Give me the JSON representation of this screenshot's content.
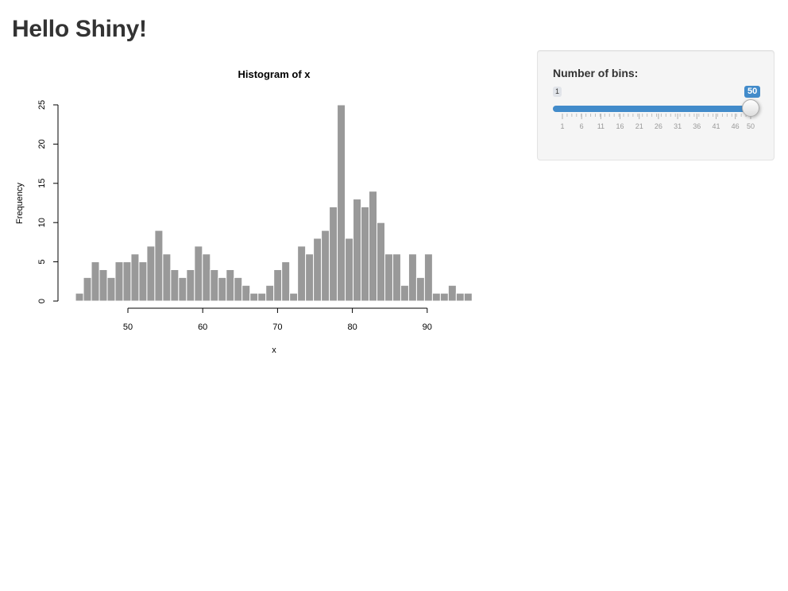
{
  "page": {
    "title": "Hello Shiny!"
  },
  "sidebar": {
    "slider": {
      "label": "Number of bins:",
      "min": 1,
      "max": 50,
      "value": 50,
      "min_label": "1",
      "value_label": "50",
      "tick_labels": [
        "1",
        "6",
        "11",
        "16",
        "21",
        "26",
        "31",
        "36",
        "41",
        "46",
        "50"
      ],
      "color": "#428bca"
    }
  },
  "chart_data": {
    "type": "bar",
    "title": "Histogram of x",
    "xlabel": "x",
    "ylabel": "Frequency",
    "bin_start": 43,
    "bin_width": 1.06,
    "values": [
      1,
      3,
      5,
      4,
      3,
      5,
      5,
      6,
      5,
      7,
      9,
      6,
      4,
      3,
      4,
      7,
      6,
      4,
      3,
      4,
      3,
      2,
      1,
      1,
      2,
      4,
      5,
      1,
      7,
      6,
      8,
      9,
      12,
      25,
      8,
      13,
      12,
      14,
      10,
      6,
      6,
      2,
      6,
      3,
      6,
      1,
      1,
      2,
      1,
      1
    ],
    "xlim": [
      40,
      96
    ],
    "ylim": [
      0,
      25
    ],
    "x_ticks": [
      50,
      60,
      70,
      80,
      90
    ],
    "y_ticks": [
      0,
      5,
      10,
      15,
      20,
      25
    ],
    "bar_color": "#999999",
    "grid": false
  }
}
